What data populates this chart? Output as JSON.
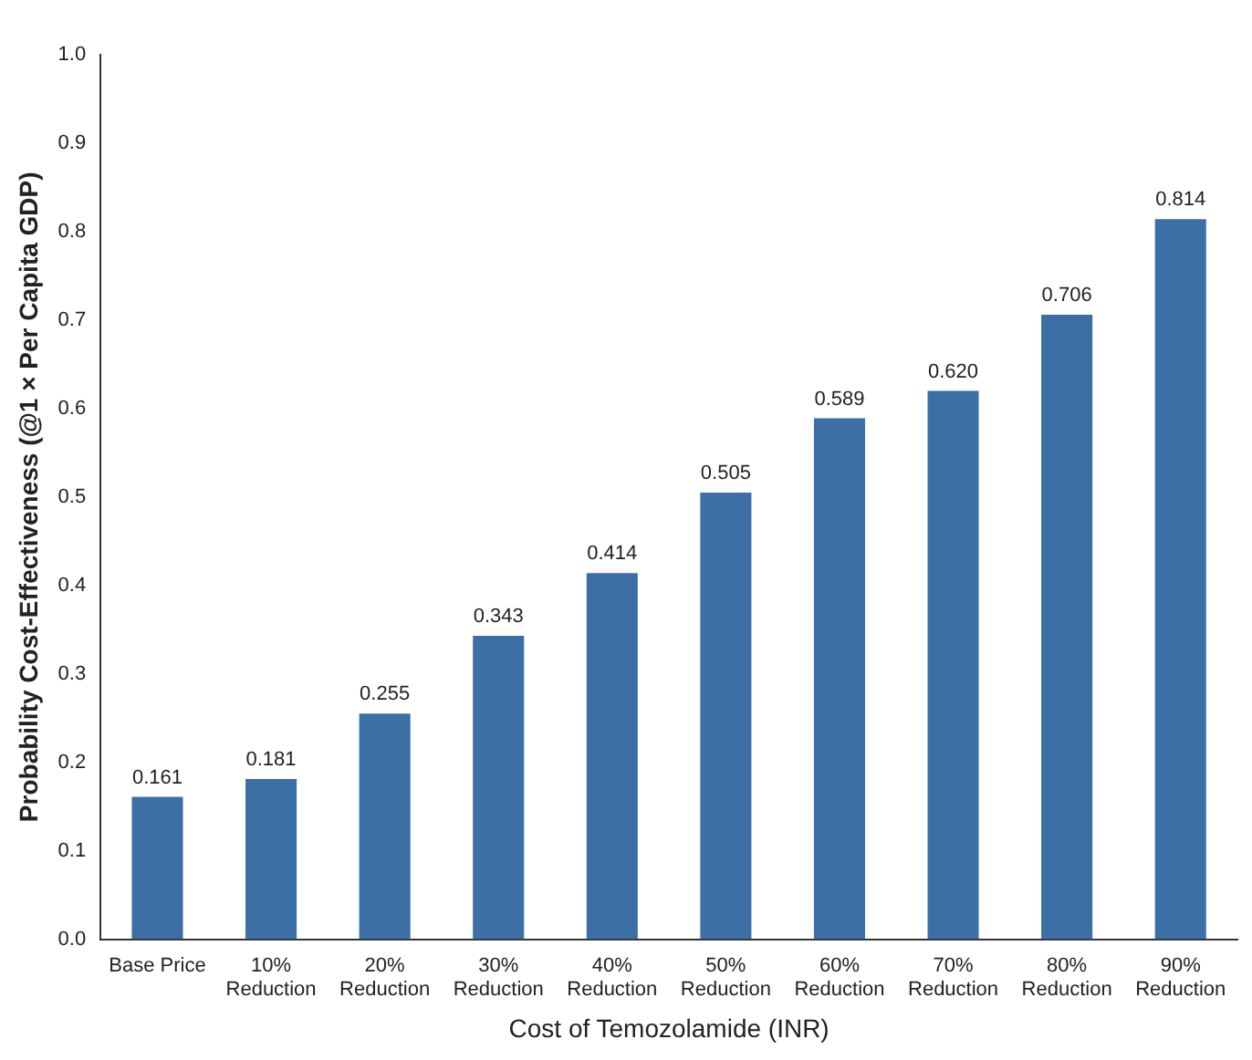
{
  "chart_data": {
    "type": "bar",
    "xlabel": "Cost of Temozolamide (INR)",
    "ylabel": "Probability Cost-Effectiveness (@1 × Per Capita GDP)",
    "categories": [
      "Base Price",
      "10% Reduction",
      "20% Reduction",
      "30% Reduction",
      "40% Reduction",
      "50% Reduction",
      "60% Reduction",
      "70% Reduction",
      "80% Reduction",
      "90% Reduction"
    ],
    "values": [
      0.161,
      0.181,
      0.255,
      0.343,
      0.414,
      0.505,
      0.589,
      0.62,
      0.706,
      0.814
    ],
    "value_labels": [
      "0.161",
      "0.181",
      "0.255",
      "0.343",
      "0.414",
      "0.505",
      "0.589",
      "0.620",
      "0.706",
      "0.814"
    ],
    "color": "#3b6fa6",
    "ylim": [
      0,
      1
    ],
    "yticks": [
      {
        "value": 0,
        "label": "0.0"
      },
      0.1,
      0.2,
      0.3,
      0.4,
      0.5,
      0.6,
      0.7,
      0.8,
      0.9,
      {
        "value": 1,
        "label": "1.0"
      }
    ],
    "grid": false,
    "legend": false
  }
}
